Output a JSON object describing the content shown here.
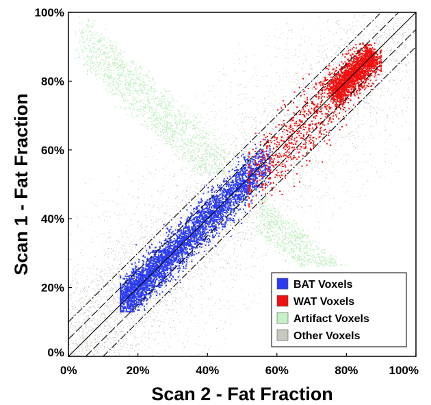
{
  "chart_data": {
    "type": "scatter",
    "title": "",
    "xlabel": "Scan 2 - Fat Fraction",
    "ylabel": "Scan 1 - Fat Fraction",
    "xlim": [
      0,
      100
    ],
    "ylim": [
      0,
      100
    ],
    "x_ticks": [
      "0%",
      "20%",
      "40%",
      "60%",
      "80%",
      "100%"
    ],
    "y_ticks": [
      "0%",
      "20%",
      "40%",
      "60%",
      "80%",
      "100%"
    ],
    "grid": false,
    "legend_position": "bottom-right",
    "legend": [
      {
        "label": "BAT Voxels",
        "color": "#2b3cf0"
      },
      {
        "label": "WAT Voxels",
        "color": "#f01010"
      },
      {
        "label": "Artifact Voxels",
        "color": "#c6f0c6"
      },
      {
        "label": "Other Voxels",
        "color": "#c8c8c0"
      }
    ],
    "series": [
      {
        "name": "BAT Voxels",
        "distribution": "clustered along identity line",
        "x_range": [
          15,
          58
        ],
        "y_range": [
          13,
          63
        ]
      },
      {
        "name": "WAT Voxels",
        "distribution": "clustered along identity line",
        "x_range": [
          52,
          90
        ],
        "y_range": [
          40,
          91
        ]
      },
      {
        "name": "Artifact Voxels",
        "distribution": "two bands perpendicular to identity line",
        "x_range": [
          4,
          79
        ],
        "y_range": [
          26,
          99
        ]
      },
      {
        "name": "Other Voxels",
        "distribution": "diffuse cloud around identity line",
        "x_range": [
          0,
          100
        ],
        "y_range": [
          0,
          100
        ]
      }
    ],
    "reference_lines": [
      {
        "style": "solid",
        "slope": 1,
        "intercept": 0
      },
      {
        "style": "dashed",
        "slope": 1,
        "intercept": 5
      },
      {
        "style": "dashed",
        "slope": 1,
        "intercept": -5
      },
      {
        "style": "dash-dot",
        "slope": 1,
        "intercept": 10
      },
      {
        "style": "dash-dot",
        "slope": 1,
        "intercept": -10
      }
    ]
  }
}
